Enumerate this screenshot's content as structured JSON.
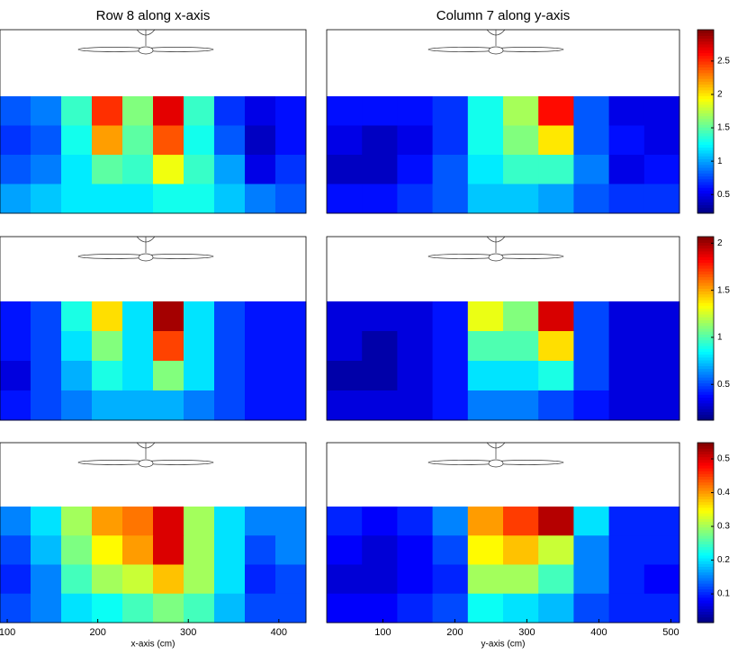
{
  "chart_data": [
    {
      "type": "heatmap",
      "title": "Row 8 along x-axis",
      "xlim": [
        92,
        430
      ],
      "values": [
        [
          0.8,
          0.9,
          1.4,
          2.5,
          1.6,
          2.7,
          1.4,
          0.7,
          0.5,
          0.6
        ],
        [
          0.7,
          0.8,
          1.3,
          2.2,
          1.5,
          2.4,
          1.3,
          0.8,
          0.4,
          0.6
        ],
        [
          0.8,
          0.9,
          1.2,
          1.5,
          1.4,
          1.9,
          1.4,
          1.0,
          0.5,
          0.7
        ],
        [
          1.0,
          1.1,
          1.2,
          1.2,
          1.2,
          1.3,
          1.3,
          1.1,
          0.9,
          0.8
        ]
      ]
    },
    {
      "type": "heatmap",
      "title": "Column 7 along y-axis",
      "xlim": [
        22,
        512
      ],
      "values": [
        [
          0.6,
          0.6,
          0.6,
          0.7,
          1.3,
          1.7,
          2.6,
          0.8,
          0.5,
          0.5
        ],
        [
          0.5,
          0.4,
          0.5,
          0.7,
          1.3,
          1.6,
          2.0,
          0.8,
          0.6,
          0.5
        ],
        [
          0.4,
          0.4,
          0.6,
          0.8,
          1.2,
          1.4,
          1.4,
          0.9,
          0.5,
          0.6
        ],
        [
          0.6,
          0.6,
          0.7,
          0.8,
          1.1,
          1.1,
          1.0,
          0.8,
          0.7,
          0.7
        ]
      ],
      "colorbar": {
        "clim": [
          0.22,
          2.97
        ],
        "ticks": [
          0.5,
          1,
          1.5,
          2,
          2.5
        ]
      }
    },
    {
      "type": "heatmap",
      "xlim": [
        92,
        430
      ],
      "values": [
        [
          0.4,
          0.5,
          0.9,
          1.4,
          0.8,
          2.0,
          0.8,
          0.5,
          0.4,
          0.4
        ],
        [
          0.4,
          0.5,
          0.8,
          1.1,
          0.8,
          1.7,
          0.8,
          0.5,
          0.4,
          0.4
        ],
        [
          0.3,
          0.5,
          0.7,
          0.9,
          0.8,
          1.1,
          0.8,
          0.5,
          0.4,
          0.4
        ],
        [
          0.4,
          0.5,
          0.6,
          0.7,
          0.7,
          0.7,
          0.6,
          0.5,
          0.4,
          0.4
        ]
      ]
    },
    {
      "type": "heatmap",
      "xlim": [
        22,
        512
      ],
      "values": [
        [
          0.3,
          0.3,
          0.3,
          0.4,
          1.3,
          1.1,
          1.9,
          0.5,
          0.3,
          0.3
        ],
        [
          0.3,
          0.2,
          0.3,
          0.4,
          1.0,
          1.0,
          1.4,
          0.5,
          0.3,
          0.3
        ],
        [
          0.2,
          0.2,
          0.3,
          0.4,
          0.8,
          0.8,
          0.9,
          0.5,
          0.3,
          0.3
        ],
        [
          0.3,
          0.3,
          0.3,
          0.4,
          0.6,
          0.6,
          0.5,
          0.4,
          0.3,
          0.3
        ]
      ],
      "colorbar": {
        "clim": [
          0.12,
          2.07
        ],
        "ticks": [
          0.5,
          1,
          1.5,
          2
        ]
      }
    },
    {
      "type": "heatmap",
      "xlabel": "x-axis (cm)",
      "xlim": [
        92,
        430
      ],
      "xticks": [
        100,
        200,
        300,
        400
      ],
      "values": [
        [
          0.15,
          0.2,
          0.3,
          0.4,
          0.42,
          0.5,
          0.3,
          0.2,
          0.15,
          0.15
        ],
        [
          0.12,
          0.18,
          0.28,
          0.35,
          0.4,
          0.5,
          0.3,
          0.2,
          0.12,
          0.15
        ],
        [
          0.1,
          0.15,
          0.25,
          0.3,
          0.32,
          0.38,
          0.3,
          0.2,
          0.1,
          0.12
        ],
        [
          0.12,
          0.15,
          0.2,
          0.22,
          0.25,
          0.28,
          0.25,
          0.18,
          0.12,
          0.12
        ]
      ]
    },
    {
      "type": "heatmap",
      "xlabel": "y-axis (cm)",
      "xlim": [
        22,
        512
      ],
      "xticks": [
        100,
        200,
        300,
        400,
        500
      ],
      "values": [
        [
          0.1,
          0.08,
          0.1,
          0.15,
          0.4,
          0.45,
          0.52,
          0.2,
          0.1,
          0.1
        ],
        [
          0.08,
          0.06,
          0.08,
          0.12,
          0.35,
          0.38,
          0.32,
          0.15,
          0.1,
          0.1
        ],
        [
          0.06,
          0.06,
          0.08,
          0.1,
          0.3,
          0.3,
          0.25,
          0.15,
          0.1,
          0.08
        ],
        [
          0.08,
          0.08,
          0.1,
          0.12,
          0.22,
          0.2,
          0.18,
          0.12,
          0.1,
          0.1
        ]
      ],
      "colorbar": {
        "clim": [
          0.015,
          0.548
        ],
        "ticks": [
          0.1,
          0.2,
          0.3,
          0.4,
          0.5
        ]
      }
    }
  ]
}
